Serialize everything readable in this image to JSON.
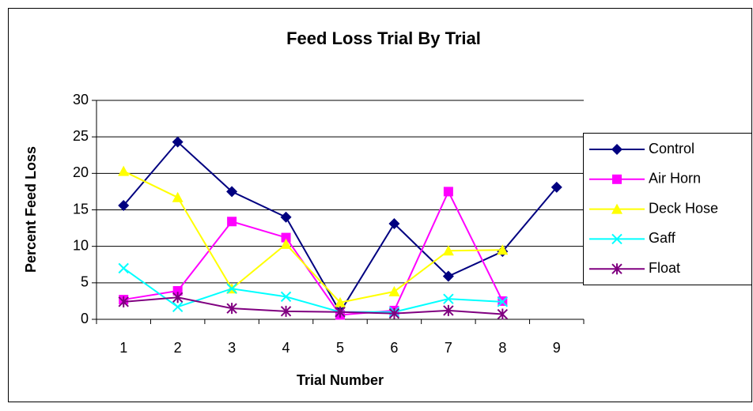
{
  "chart_data": {
    "type": "line",
    "title": "Feed Loss Trial By Trial",
    "x_label": "Trial Number",
    "y_label": "Percent Feed Loss",
    "categories": [
      "1",
      "2",
      "3",
      "4",
      "5",
      "6",
      "7",
      "8",
      "9"
    ],
    "series": [
      {
        "name": "Control",
        "color": "#000080",
        "marker": "diamond",
        "values": [
          15.6,
          24.3,
          17.5,
          14.0,
          1.0,
          13.1,
          5.9,
          9.3,
          18.1
        ]
      },
      {
        "name": "Air Horn",
        "color": "#ff00ff",
        "marker": "square",
        "values": [
          2.7,
          3.9,
          13.4,
          11.2,
          0.6,
          1.2,
          17.5,
          2.5,
          null
        ]
      },
      {
        "name": "Deck Hose",
        "color": "#ffff00",
        "marker": "triangle",
        "values": [
          20.3,
          16.7,
          4.2,
          10.3,
          2.3,
          3.8,
          9.4,
          9.5,
          null
        ]
      },
      {
        "name": "Gaff",
        "color": "#00ffff",
        "marker": "x",
        "values": [
          7.0,
          1.7,
          4.2,
          3.1,
          1.0,
          1.0,
          2.8,
          2.4,
          null
        ]
      },
      {
        "name": "Float",
        "color": "#800080",
        "marker": "star",
        "values": [
          2.4,
          3.0,
          1.5,
          1.1,
          1.0,
          0.8,
          1.2,
          0.7,
          null
        ]
      }
    ],
    "ylim": [
      0,
      30
    ],
    "yticks": [
      0,
      5,
      10,
      15,
      20,
      25,
      30
    ],
    "grid": true,
    "legend": "right"
  }
}
